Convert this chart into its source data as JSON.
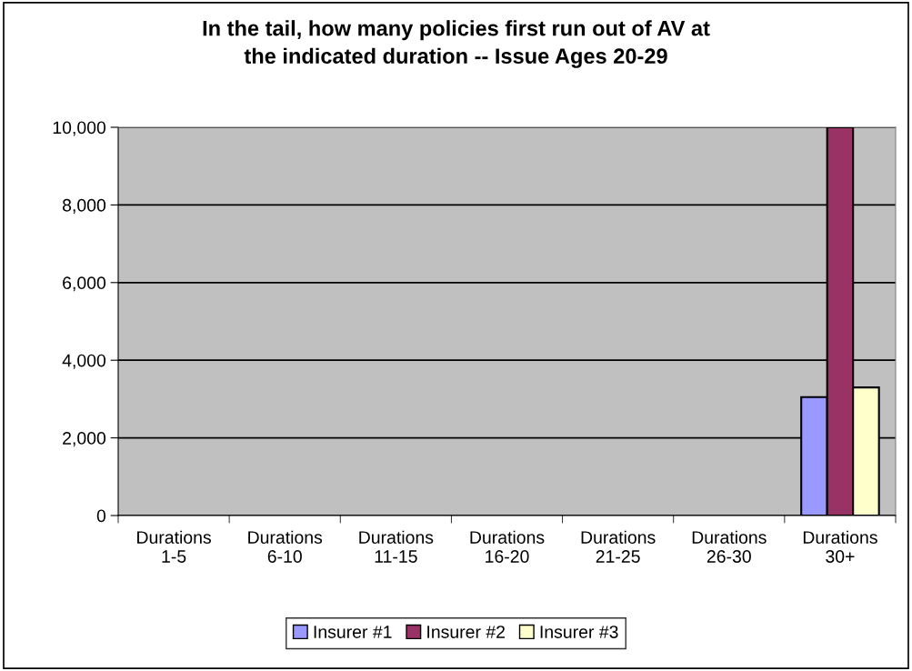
{
  "chart_data": {
    "type": "bar",
    "title": "In the tail, how many policies first run out of AV at\nthe indicated duration -- Issue Ages 20-29",
    "categories": [
      "Durations\n1-5",
      "Durations\n6-10",
      "Durations\n11-15",
      "Durations\n16-20",
      "Durations\n21-25",
      "Durations\n26-30",
      "Durations\n30+"
    ],
    "series": [
      {
        "name": "Insurer #1",
        "color": "#9999ff",
        "values": [
          0,
          0,
          0,
          0,
          0,
          0,
          3050
        ]
      },
      {
        "name": "Insurer #2",
        "color": "#993366",
        "values": [
          0,
          0,
          0,
          0,
          0,
          0,
          10000
        ]
      },
      {
        "name": "Insurer #3",
        "color": "#ffffcc",
        "values": [
          0,
          0,
          0,
          0,
          0,
          0,
          3300
        ]
      }
    ],
    "ylim": [
      0,
      10000
    ],
    "yticks": [
      {
        "value": 0,
        "label": "0"
      },
      {
        "value": 2000,
        "label": "2,000"
      },
      {
        "value": 4000,
        "label": "4,000"
      },
      {
        "value": 6000,
        "label": "6,000"
      },
      {
        "value": 8000,
        "label": "8,000"
      },
      {
        "value": 10000,
        "label": "10,000"
      }
    ],
    "grid": "y",
    "legend": "bottom"
  }
}
